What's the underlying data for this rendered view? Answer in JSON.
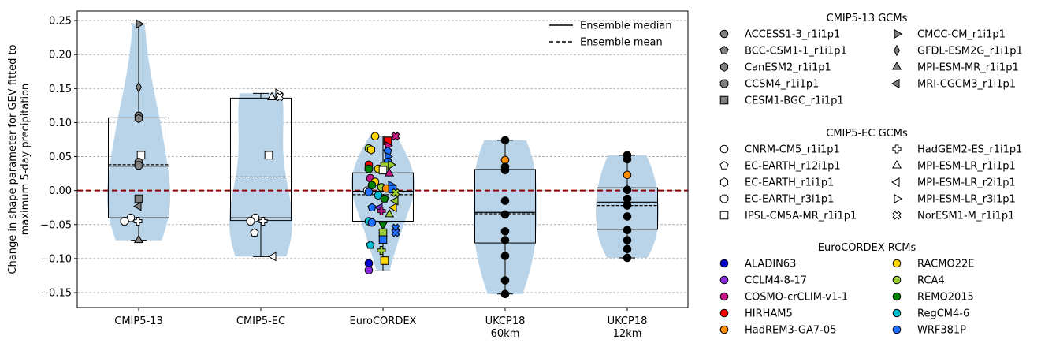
{
  "chart_data": {
    "type": "violin-box-scatter",
    "ylabel": [
      "Change in shape parameter for GEV fitted to",
      "maximum 5-day precipitation"
    ],
    "ylim": [
      -0.172,
      0.264
    ],
    "yticks": [
      -0.15,
      -0.1,
      -0.05,
      0.0,
      0.05,
      0.1,
      0.15,
      0.2,
      0.25
    ],
    "ytick_labels": [
      "−0.15",
      "−0.10",
      "−0.05",
      "0.00",
      "0.05",
      "0.10",
      "0.15",
      "0.20",
      "0.25"
    ],
    "grid": "horizontal dashed",
    "zero_line_color": "#8b0000",
    "violin_color": "#b9d4e8",
    "categories": [
      {
        "label": [
          "CMIP5-13"
        ],
        "q1": -0.04,
        "q3": 0.107,
        "median": 0.036,
        "mean": 0.038,
        "whisker_low": -0.073,
        "whisker_high": 0.245
      },
      {
        "label": [
          "CMIP5-EC"
        ],
        "q1": -0.044,
        "q3": 0.136,
        "median": -0.04,
        "mean": 0.02,
        "whisker_low": -0.097,
        "whisker_high": 0.143
      },
      {
        "label": [
          "EuroCORDEX"
        ],
        "q1": -0.045,
        "q3": 0.026,
        "median": -0.001,
        "mean": -0.006,
        "whisker_low": -0.118,
        "whisker_high": 0.08
      },
      {
        "label": [
          "UKCP18",
          "60km"
        ],
        "q1": -0.077,
        "q3": 0.031,
        "median": -0.032,
        "mean": -0.034,
        "whisker_low": -0.152,
        "whisker_high": 0.074
      },
      {
        "label": [
          "UKCP18",
          "12km"
        ],
        "q1": -0.057,
        "q3": 0.004,
        "median": -0.017,
        "mean": -0.022,
        "whisker_low": -0.099,
        "whisker_high": 0.052
      }
    ],
    "points": [
      {
        "cat": 0,
        "dx": 0,
        "y": 0.245,
        "marker": "tri-right",
        "fill": "#808080"
      },
      {
        "cat": 0,
        "dx": 0,
        "y": 0.152,
        "marker": "thin-diamond",
        "fill": "#808080"
      },
      {
        "cat": 0,
        "dx": 0,
        "y": 0.11,
        "marker": "circle",
        "fill": "#808080"
      },
      {
        "cat": 0,
        "dx": 0,
        "y": 0.106,
        "marker": "hexagon",
        "fill": "#808080"
      },
      {
        "cat": 0,
        "dx": 3,
        "y": 0.052,
        "marker": "square",
        "fill": "#ffffff"
      },
      {
        "cat": 0,
        "dx": 0,
        "y": 0.042,
        "marker": "circle",
        "fill": "#808080"
      },
      {
        "cat": 0,
        "dx": 0,
        "y": 0.037,
        "marker": "octagon",
        "fill": "#808080"
      },
      {
        "cat": 0,
        "dx": 0,
        "y": -0.012,
        "marker": "square",
        "fill": "#808080"
      },
      {
        "cat": 0,
        "dx": 0,
        "y": -0.023,
        "marker": "tri-left",
        "fill": "#808080"
      },
      {
        "cat": 0,
        "dx": -10,
        "y": -0.04,
        "marker": "circle",
        "fill": "#ffffff"
      },
      {
        "cat": 0,
        "dx": -18,
        "y": -0.045,
        "marker": "octagon",
        "fill": "#ffffff"
      },
      {
        "cat": 0,
        "dx": -1,
        "y": -0.045,
        "marker": "plus",
        "fill": "#ffffff"
      },
      {
        "cat": 0,
        "dx": 0,
        "y": -0.073,
        "marker": "tri-up",
        "fill": "#808080"
      },
      {
        "cat": 1,
        "dx": 22,
        "y": 0.143,
        "marker": "tri-right",
        "fill": "#ffffff"
      },
      {
        "cat": 1,
        "dx": 24,
        "y": 0.138,
        "marker": "x",
        "fill": "#ffffff"
      },
      {
        "cat": 1,
        "dx": 14,
        "y": 0.137,
        "marker": "tri-up",
        "fill": "#ffffff"
      },
      {
        "cat": 1,
        "dx": 10,
        "y": 0.052,
        "marker": "square",
        "fill": "#ffffff"
      },
      {
        "cat": 1,
        "dx": -7,
        "y": -0.04,
        "marker": "circle",
        "fill": "#ffffff"
      },
      {
        "cat": 1,
        "dx": -13,
        "y": -0.045,
        "marker": "octagon",
        "fill": "#ffffff"
      },
      {
        "cat": 1,
        "dx": 3,
        "y": -0.045,
        "marker": "plus",
        "fill": "#ffffff"
      },
      {
        "cat": 1,
        "dx": -8,
        "y": -0.062,
        "marker": "pentagon",
        "fill": "#ffffff"
      },
      {
        "cat": 1,
        "dx": 16,
        "y": -0.097,
        "marker": "tri-left",
        "fill": "#ffffff"
      },
      {
        "cat": 2,
        "dx": -10,
        "y": 0.08,
        "marker": "circle",
        "fill": "#ffd700"
      },
      {
        "cat": 2,
        "dx": 16,
        "y": 0.08,
        "marker": "x",
        "fill": "#c71585"
      },
      {
        "cat": 2,
        "dx": 6,
        "y": 0.073,
        "marker": "square",
        "fill": "#ff0000"
      },
      {
        "cat": 2,
        "dx": 6,
        "y": 0.066,
        "marker": "tri-right",
        "fill": "#c71585"
      },
      {
        "cat": 2,
        "dx": -18,
        "y": 0.062,
        "marker": "circle",
        "fill": "#9acd32"
      },
      {
        "cat": 2,
        "dx": -15,
        "y": 0.06,
        "marker": "hexagon",
        "fill": "#ffd700"
      },
      {
        "cat": 2,
        "dx": 6,
        "y": 0.058,
        "marker": "pentagon",
        "fill": "#1e6fff"
      },
      {
        "cat": 2,
        "dx": 6,
        "y": 0.05,
        "marker": "tri-right",
        "fill": "#1e6fff"
      },
      {
        "cat": 2,
        "dx": 6,
        "y": 0.042,
        "marker": "hexagon",
        "fill": "#1e6fff"
      },
      {
        "cat": 2,
        "dx": -18,
        "y": 0.038,
        "marker": "circle",
        "fill": "#ff0000"
      },
      {
        "cat": 2,
        "dx": 10,
        "y": 0.038,
        "marker": "tri-right",
        "fill": "#9acd32"
      },
      {
        "cat": 2,
        "dx": 2,
        "y": 0.036,
        "marker": "square",
        "fill": "#9acd32"
      },
      {
        "cat": 2,
        "dx": -18,
        "y": 0.032,
        "marker": "octagon",
        "fill": "#008000"
      },
      {
        "cat": 2,
        "dx": -6,
        "y": 0.032,
        "marker": "circle",
        "fill": "#ffd700"
      },
      {
        "cat": 2,
        "dx": 0,
        "y": 0.03,
        "marker": "square",
        "fill": "#ffffff"
      },
      {
        "cat": 2,
        "dx": 8,
        "y": 0.025,
        "marker": "tri-up",
        "fill": "#c71585"
      },
      {
        "cat": 2,
        "dx": -16,
        "y": 0.018,
        "marker": "circle",
        "fill": "#c71585"
      },
      {
        "cat": 2,
        "dx": -10,
        "y": 0.013,
        "marker": "circle",
        "fill": "#ffd700"
      },
      {
        "cat": 2,
        "dx": -14,
        "y": 0.008,
        "marker": "circle",
        "fill": "#008000"
      },
      {
        "cat": 2,
        "dx": 10,
        "y": 0.008,
        "marker": "tri-right",
        "fill": "#1e6fff"
      },
      {
        "cat": 2,
        "dx": -2,
        "y": 0.005,
        "marker": "circle",
        "fill": "#9acd32"
      },
      {
        "cat": 2,
        "dx": 4,
        "y": 0.003,
        "marker": "circle",
        "fill": "#ff8c00"
      },
      {
        "cat": 2,
        "dx": 12,
        "y": 0.002,
        "marker": "square",
        "fill": "#1e6fff"
      },
      {
        "cat": 2,
        "dx": -20,
        "y": 0.0,
        "marker": "circle",
        "fill": "#ffffff"
      },
      {
        "cat": 2,
        "dx": -18,
        "y": -0.002,
        "marker": "circle",
        "fill": "#1e6fff"
      },
      {
        "cat": 2,
        "dx": 16,
        "y": -0.003,
        "marker": "x",
        "fill": "#9acd32"
      },
      {
        "cat": 2,
        "dx": -6,
        "y": -0.007,
        "marker": "circle",
        "fill": "#00bcd4"
      },
      {
        "cat": 2,
        "dx": 2,
        "y": -0.012,
        "marker": "pentagon",
        "fill": "#008000"
      },
      {
        "cat": 2,
        "dx": 16,
        "y": -0.015,
        "marker": "tri-left",
        "fill": "#9acd32"
      },
      {
        "cat": 2,
        "dx": -14,
        "y": -0.025,
        "marker": "pentagon",
        "fill": "#1e6fff"
      },
      {
        "cat": 2,
        "dx": -4,
        "y": -0.025,
        "marker": "tri-left",
        "fill": "#8a2be2"
      },
      {
        "cat": 2,
        "dx": 14,
        "y": -0.025,
        "marker": "tri-left",
        "fill": "#ffd700"
      },
      {
        "cat": 2,
        "dx": -2,
        "y": -0.03,
        "marker": "plus",
        "fill": "#c71585"
      },
      {
        "cat": 2,
        "dx": 8,
        "y": -0.035,
        "marker": "tri-up",
        "fill": "#9acd32"
      },
      {
        "cat": 2,
        "dx": -18,
        "y": -0.045,
        "marker": "circle",
        "fill": "#00bcd4"
      },
      {
        "cat": 2,
        "dx": -14,
        "y": -0.047,
        "marker": "circle",
        "fill": "#1e6fff"
      },
      {
        "cat": 2,
        "dx": 0,
        "y": -0.05,
        "marker": "tri-down",
        "fill": "#008000"
      },
      {
        "cat": 2,
        "dx": 16,
        "y": -0.055,
        "marker": "x",
        "fill": "#1e6fff"
      },
      {
        "cat": 2,
        "dx": 0,
        "y": -0.062,
        "marker": "square",
        "fill": "#9acd32"
      },
      {
        "cat": 2,
        "dx": 16,
        "y": -0.062,
        "marker": "x",
        "fill": "#1e6fff"
      },
      {
        "cat": 2,
        "dx": 0,
        "y": -0.072,
        "marker": "square",
        "fill": "#1e6fff"
      },
      {
        "cat": 2,
        "dx": -16,
        "y": -0.08,
        "marker": "pentagon",
        "fill": "#00bcd4"
      },
      {
        "cat": 2,
        "dx": -2,
        "y": -0.088,
        "marker": "plus",
        "fill": "#9acd32"
      },
      {
        "cat": 2,
        "dx": 2,
        "y": -0.103,
        "marker": "square",
        "fill": "#ffd700"
      },
      {
        "cat": 2,
        "dx": -18,
        "y": -0.107,
        "marker": "circle",
        "fill": "#0000cd"
      },
      {
        "cat": 2,
        "dx": -18,
        "y": -0.117,
        "marker": "circle",
        "fill": "#8a2be2"
      },
      {
        "cat": 3,
        "dx": 0,
        "y": 0.074,
        "marker": "circle",
        "fill": "#000000"
      },
      {
        "cat": 3,
        "dx": 0,
        "y": 0.045,
        "marker": "circle",
        "fill": "#ff8c00"
      },
      {
        "cat": 3,
        "dx": 0,
        "y": 0.035,
        "marker": "circle",
        "fill": "#000000"
      },
      {
        "cat": 3,
        "dx": 0,
        "y": 0.03,
        "marker": "circle",
        "fill": "#000000"
      },
      {
        "cat": 3,
        "dx": 0,
        "y": -0.015,
        "marker": "circle",
        "fill": "#000000"
      },
      {
        "cat": 3,
        "dx": 0,
        "y": -0.035,
        "marker": "circle",
        "fill": "#000000"
      },
      {
        "cat": 3,
        "dx": 0,
        "y": -0.06,
        "marker": "circle",
        "fill": "#000000"
      },
      {
        "cat": 3,
        "dx": 0,
        "y": -0.073,
        "marker": "circle",
        "fill": "#000000"
      },
      {
        "cat": 3,
        "dx": 0,
        "y": -0.096,
        "marker": "circle",
        "fill": "#000000"
      },
      {
        "cat": 3,
        "dx": 0,
        "y": -0.132,
        "marker": "circle",
        "fill": "#000000"
      },
      {
        "cat": 3,
        "dx": 0,
        "y": -0.152,
        "marker": "circle",
        "fill": "#000000"
      },
      {
        "cat": 4,
        "dx": 0,
        "y": 0.052,
        "marker": "circle",
        "fill": "#000000"
      },
      {
        "cat": 4,
        "dx": 0,
        "y": 0.046,
        "marker": "circle",
        "fill": "#000000"
      },
      {
        "cat": 4,
        "dx": 0,
        "y": 0.023,
        "marker": "circle",
        "fill": "#ff8c00"
      },
      {
        "cat": 4,
        "dx": 0,
        "y": 0.001,
        "marker": "circle",
        "fill": "#000000"
      },
      {
        "cat": 4,
        "dx": 0,
        "y": -0.012,
        "marker": "circle",
        "fill": "#000000"
      },
      {
        "cat": 4,
        "dx": 0,
        "y": -0.022,
        "marker": "circle",
        "fill": "#000000"
      },
      {
        "cat": 4,
        "dx": 0,
        "y": -0.038,
        "marker": "circle",
        "fill": "#000000"
      },
      {
        "cat": 4,
        "dx": 0,
        "y": -0.058,
        "marker": "circle",
        "fill": "#000000"
      },
      {
        "cat": 4,
        "dx": 0,
        "y": -0.073,
        "marker": "circle",
        "fill": "#000000"
      },
      {
        "cat": 4,
        "dx": 0,
        "y": -0.086,
        "marker": "circle",
        "fill": "#000000"
      },
      {
        "cat": 4,
        "dx": 0,
        "y": -0.099,
        "marker": "circle",
        "fill": "#000000"
      }
    ],
    "inner_legend": [
      {
        "label": "Ensemble median",
        "style": "solid"
      },
      {
        "label": "Ensemble mean",
        "style": "dashed"
      }
    ],
    "legend_groups": [
      {
        "title": "CMIP5-13 GCMs",
        "columns": [
          [
            {
              "label": "ACCESS1-3_r1i1p1",
              "marker": "circle",
              "fill": "#808080"
            },
            {
              "label": "BCC-CSM1-1_r1i1p1",
              "marker": "pentagon",
              "fill": "#808080"
            },
            {
              "label": "CanESM2_r1i1p1",
              "marker": "hexagon",
              "fill": "#808080"
            },
            {
              "label": "CCSM4_r1i1p1",
              "marker": "octagon",
              "fill": "#808080"
            },
            {
              "label": "CESM1-BGC_r1i1p1",
              "marker": "square",
              "fill": "#808080"
            }
          ],
          [
            {
              "label": "CMCC-CM_r1i1p1",
              "marker": "tri-right",
              "fill": "#808080"
            },
            {
              "label": "GFDL-ESM2G_r1i1p1",
              "marker": "thin-diamond",
              "fill": "#808080"
            },
            {
              "label": "MPI-ESM-MR_r1i1p1",
              "marker": "tri-up",
              "fill": "#808080"
            },
            {
              "label": "MRI-CGCM3_r1i1p1",
              "marker": "tri-left",
              "fill": "#808080"
            }
          ]
        ]
      },
      {
        "title": "CMIP5-EC GCMs",
        "columns": [
          [
            {
              "label": "CNRM-CM5_r1i1p1",
              "marker": "circle",
              "fill": "#ffffff"
            },
            {
              "label": "EC-EARTH_r12i1p1",
              "marker": "pentagon",
              "fill": "#ffffff"
            },
            {
              "label": "EC-EARTH_r1i1p1",
              "marker": "hexagon",
              "fill": "#ffffff"
            },
            {
              "label": "EC-EARTH_r3i1p1",
              "marker": "octagon",
              "fill": "#ffffff"
            },
            {
              "label": "IPSL-CM5A-MR_r1i1p1",
              "marker": "square",
              "fill": "#ffffff"
            }
          ],
          [
            {
              "label": "HadGEM2-ES_r1i1p1",
              "marker": "plus",
              "fill": "#ffffff"
            },
            {
              "label": "MPI-ESM-LR_r1i1p1",
              "marker": "tri-up",
              "fill": "#ffffff"
            },
            {
              "label": "MPI-ESM-LR_r2i1p1",
              "marker": "tri-left",
              "fill": "#ffffff"
            },
            {
              "label": "MPI-ESM-LR_r3i1p1",
              "marker": "tri-right",
              "fill": "#ffffff"
            },
            {
              "label": "NorESM1-M_r1i1p1",
              "marker": "x",
              "fill": "#ffffff"
            }
          ]
        ]
      },
      {
        "title": "EuroCORDEX RCMs",
        "columns": [
          [
            {
              "label": "ALADIN63",
              "marker": "circle",
              "fill": "#0000cd"
            },
            {
              "label": "CCLM4-8-17",
              "marker": "circle",
              "fill": "#8a2be2"
            },
            {
              "label": "COSMO-crCLIM-v1-1",
              "marker": "circle",
              "fill": "#c71585"
            },
            {
              "label": "HIRHAM5",
              "marker": "circle",
              "fill": "#ff0000"
            },
            {
              "label": "HadREM3-GA7-05",
              "marker": "circle",
              "fill": "#ff8c00"
            }
          ],
          [
            {
              "label": "RACMO22E",
              "marker": "circle",
              "fill": "#ffd700"
            },
            {
              "label": "RCA4",
              "marker": "circle",
              "fill": "#9acd32"
            },
            {
              "label": "REMO2015",
              "marker": "circle",
              "fill": "#008000"
            },
            {
              "label": "RegCM4-6",
              "marker": "circle",
              "fill": "#00bcd4"
            },
            {
              "label": "WRF381P",
              "marker": "circle",
              "fill": "#1e6fff"
            }
          ]
        ]
      }
    ]
  }
}
